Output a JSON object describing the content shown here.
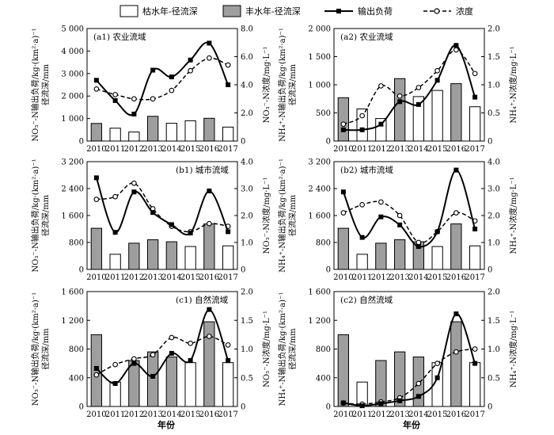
{
  "legend": {
    "dry": "枯水年-径流深",
    "wet": "丰水年-径流深",
    "load": "输出负荷",
    "conc": "浓度"
  },
  "colors": {
    "dry_fill": "#ffffff",
    "wet_fill": "#9e9e9e",
    "bar_stroke": "#000000",
    "line": "#000000"
  },
  "years": [
    "2010",
    "2011",
    "2012",
    "2013",
    "2014",
    "2015",
    "2016",
    "2017"
  ],
  "xlabel": "年份",
  "left_label_no3": [
    "NO₃⁻-N输出负荷/kg·(km²·a)⁻¹",
    "径流深/mm"
  ],
  "left_label_nh4": [
    "NH₄⁺-N输出负荷/kg·(km²·a)⁻¹",
    "径流深/mm"
  ],
  "right_label_no3": "NO₃⁻-N浓度/mg·L⁻¹",
  "right_label_nh4": "NH₄⁺-N浓度/mg·L⁻¹",
  "chart_data": [
    {
      "type": "bar+line",
      "title": "(a1) 农业流域",
      "ylim": [
        0,
        5000
      ],
      "yticks": [
        "0",
        "1 000",
        "2 000",
        "3 000",
        "4 000",
        "5 000"
      ],
      "y2lim": [
        0,
        8
      ],
      "y2ticks": [
        "0",
        "2.0",
        "4.0",
        "6.0",
        "8.0"
      ],
      "bar_types": [
        "wet",
        "dry",
        "dry",
        "wet",
        "dry",
        "dry",
        "wet",
        "dry"
      ],
      "runoff": [
        780,
        570,
        400,
        1100,
        790,
        900,
        1010,
        620
      ],
      "load": [
        2700,
        1800,
        1200,
        3150,
        2850,
        3600,
        4350,
        2500
      ],
      "concentration": [
        3.7,
        3.3,
        3.0,
        3.0,
        3.6,
        5.0,
        5.9,
        5.4
      ]
    },
    {
      "type": "bar+line",
      "title": "(a2) 农业流域",
      "ylim": [
        0,
        2000
      ],
      "yticks": [
        "0",
        "500",
        "1 000",
        "1 500",
        "2 000"
      ],
      "y2lim": [
        0,
        2
      ],
      "y2ticks": [
        "0",
        "0.5",
        "1.0",
        "1.5",
        "2.0"
      ],
      "bar_types": [
        "wet",
        "dry",
        "dry",
        "wet",
        "dry",
        "dry",
        "wet",
        "dry"
      ],
      "runoff": [
        770,
        570,
        400,
        1110,
        790,
        900,
        1020,
        610
      ],
      "load": [
        200,
        200,
        300,
        700,
        650,
        1080,
        1700,
        780
      ],
      "concentration": [
        0.3,
        0.45,
        0.98,
        0.8,
        0.95,
        1.25,
        1.62,
        1.2
      ]
    },
    {
      "type": "bar+line",
      "title": "(b1) 城市流域",
      "ylim": [
        0,
        3200
      ],
      "yticks": [
        "0",
        "800",
        "1 600",
        "2 400",
        "3 200"
      ],
      "y2lim": [
        0,
        4
      ],
      "y2ticks": [
        "0",
        "1.0",
        "2.0",
        "3.0",
        "4.0"
      ],
      "bar_types": [
        "wet",
        "dry",
        "wet",
        "wet",
        "wet",
        "dry",
        "wet",
        "dry"
      ],
      "runoff": [
        1220,
        450,
        780,
        880,
        820,
        680,
        1350,
        700
      ],
      "load": [
        2720,
        1100,
        2300,
        1690,
        1330,
        1080,
        2330,
        1120
      ],
      "concentration": [
        2.6,
        2.7,
        3.2,
        2.25,
        1.6,
        1.4,
        1.7,
        1.6
      ]
    },
    {
      "type": "bar+line",
      "title": "(b2) 城市流域",
      "ylim": [
        0,
        3200
      ],
      "yticks": [
        "0",
        "800",
        "1 600",
        "2 400",
        "3 200"
      ],
      "y2lim": [
        0,
        4
      ],
      "y2ticks": [
        "0",
        "1.0",
        "2.0",
        "3.0",
        "4.0"
      ],
      "bar_types": [
        "wet",
        "dry",
        "wet",
        "wet",
        "wet",
        "dry",
        "wet",
        "dry"
      ],
      "runoff": [
        1220,
        450,
        780,
        880,
        820,
        680,
        1350,
        700
      ],
      "load": [
        2300,
        950,
        1560,
        1320,
        680,
        1120,
        2950,
        1200
      ],
      "concentration": [
        2.1,
        2.4,
        2.5,
        2.0,
        1.0,
        1.4,
        2.1,
        1.8
      ]
    },
    {
      "type": "bar+line",
      "title": "(c1) 自然流域",
      "ylim": [
        0,
        1600
      ],
      "yticks": [
        "0",
        "400",
        "800",
        "1 200",
        "1 600"
      ],
      "y2lim": [
        0,
        2
      ],
      "y2ticks": [
        "0",
        "0.5",
        "1.0",
        "1.5",
        "2.0"
      ],
      "bar_types": [
        "wet",
        "dry",
        "wet",
        "wet",
        "wet",
        "dry",
        "wet",
        "dry"
      ],
      "runoff": [
        1000,
        340,
        640,
        760,
        690,
        610,
        1180,
        610
      ],
      "load": [
        530,
        320,
        600,
        420,
        740,
        640,
        1350,
        640
      ],
      "concentration": [
        0.55,
        0.73,
        0.83,
        0.9,
        1.2,
        1.1,
        1.22,
        1.07
      ]
    },
    {
      "type": "bar+line",
      "title": "(c2) 自然流域",
      "ylim": [
        0,
        1600
      ],
      "yticks": [
        "0",
        "400",
        "800",
        "1 200",
        "1 600"
      ],
      "y2lim": [
        0,
        2
      ],
      "y2ticks": [
        "0",
        "0.5",
        "1.0",
        "1.5",
        "2.0"
      ],
      "bar_types": [
        "wet",
        "dry",
        "wet",
        "wet",
        "wet",
        "dry",
        "wet",
        "dry"
      ],
      "runoff": [
        1000,
        340,
        640,
        760,
        690,
        610,
        1180,
        610
      ],
      "load": [
        50,
        10,
        40,
        80,
        140,
        400,
        1290,
        600
      ],
      "concentration": [
        0.06,
        0.04,
        0.08,
        0.15,
        0.4,
        0.75,
        0.95,
        1.0
      ]
    }
  ]
}
